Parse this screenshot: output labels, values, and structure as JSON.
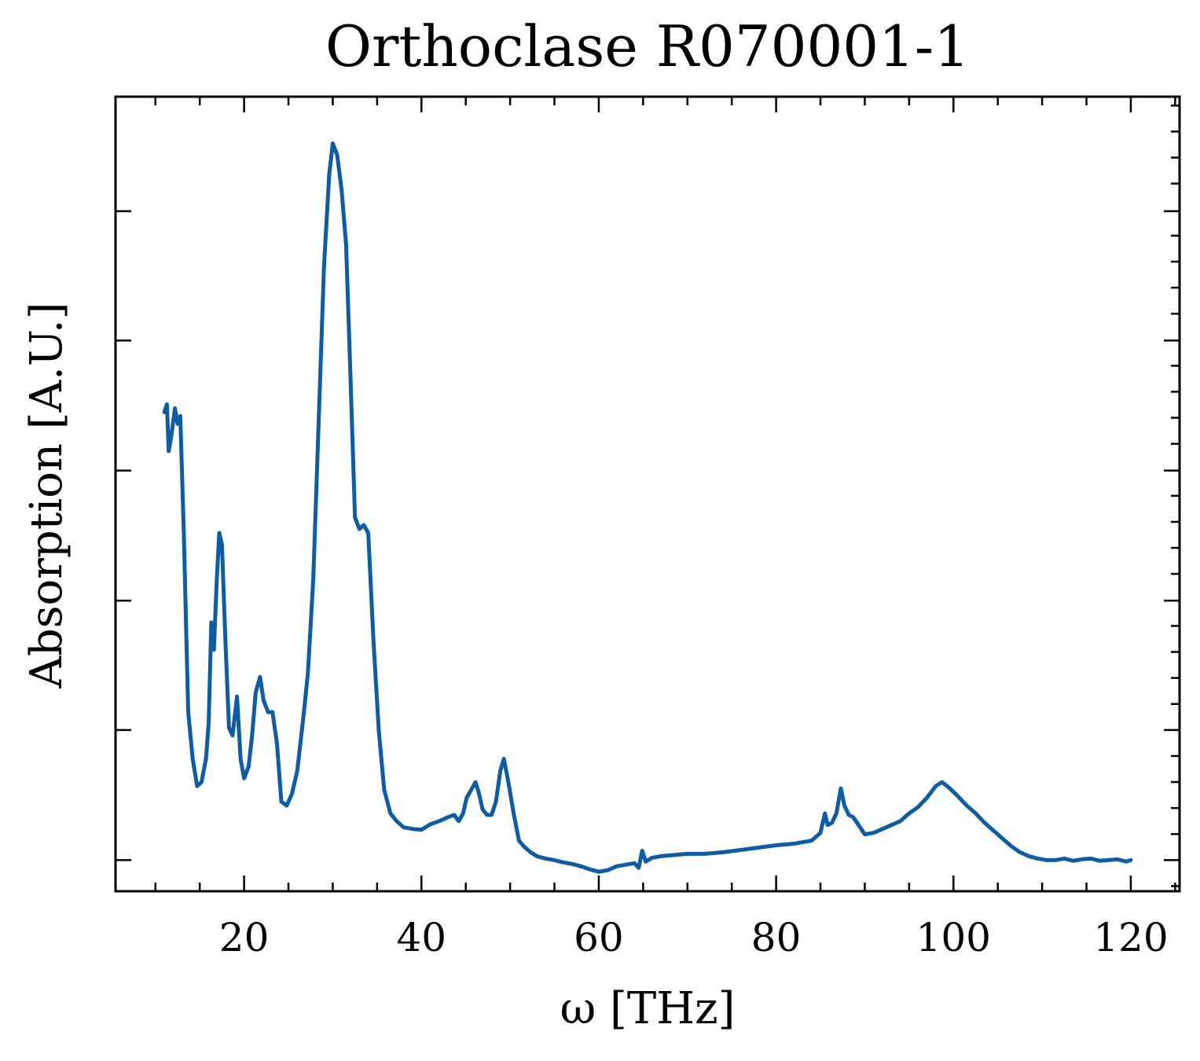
{
  "chart_data": {
    "type": "line",
    "title": "Orthoclase R070001-1",
    "xlabel": "ω [THz]",
    "ylabel": "Absorption [A.U.]",
    "xlim": [
      5.5,
      125.5
    ],
    "ylim": [
      -0.04,
      0.98
    ],
    "xticks": [
      20,
      40,
      60,
      80,
      100,
      120
    ],
    "yticks": [
      0.0,
      0.167,
      0.333,
      0.5,
      0.667,
      0.833
    ],
    "grid": false,
    "legend": "none",
    "series": [
      {
        "color": "#0c5da5",
        "x": [
          11.0,
          11.3,
          11.5,
          11.8,
          12.2,
          12.5,
          12.8,
          13.2,
          13.7,
          14.2,
          14.7,
          15.2,
          15.7,
          16.0,
          16.3,
          16.6,
          16.9,
          17.2,
          17.5,
          17.9,
          18.3,
          18.7,
          19.2,
          19.6,
          20.0,
          20.5,
          20.9,
          21.3,
          21.8,
          22.2,
          22.7,
          23.2,
          23.7,
          24.2,
          24.8,
          25.4,
          26.0,
          26.7,
          27.2,
          27.8,
          28.4,
          29.0,
          29.6,
          30.0,
          30.5,
          31.0,
          31.5,
          32.0,
          32.5,
          33.0,
          33.5,
          34.0,
          34.6,
          35.2,
          35.8,
          36.5,
          37.2,
          38.0,
          39.0,
          40.0,
          41.0,
          42.0,
          43.0,
          43.7,
          44.2,
          44.7,
          45.1,
          45.6,
          46.1,
          46.5,
          46.9,
          47.4,
          47.9,
          48.4,
          48.9,
          49.3,
          49.8,
          50.4,
          51.0,
          51.6,
          52.3,
          53.0,
          54.0,
          55.0,
          56.0,
          57.0,
          58.0,
          59.0,
          60.0,
          61.0,
          62.0,
          63.0,
          64.0,
          64.5,
          64.9,
          65.3,
          66.0,
          67.0,
          68.0,
          70.0,
          72.0,
          74.0,
          76.0,
          78.0,
          80.0,
          82.0,
          84.0,
          85.0,
          85.5,
          85.8,
          86.3,
          86.8,
          87.3,
          87.7,
          88.2,
          88.7,
          89.3,
          90.0,
          91.0,
          92.0,
          93.0,
          94.0,
          95.0,
          96.0,
          97.0,
          98.0,
          98.7,
          99.5,
          100.5,
          101.5,
          102.5,
          103.5,
          104.5,
          105.5,
          106.5,
          107.5,
          108.5,
          109.5,
          110.5,
          111.5,
          112.5,
          113.5,
          114.5,
          115.5,
          116.5,
          117.5,
          118.5,
          119.5,
          120.0
        ],
        "y": [
          0.575,
          0.585,
          0.525,
          0.545,
          0.58,
          0.56,
          0.57,
          0.42,
          0.19,
          0.13,
          0.095,
          0.1,
          0.13,
          0.175,
          0.305,
          0.27,
          0.355,
          0.42,
          0.405,
          0.28,
          0.17,
          0.16,
          0.21,
          0.13,
          0.105,
          0.12,
          0.16,
          0.215,
          0.235,
          0.205,
          0.19,
          0.19,
          0.15,
          0.075,
          0.07,
          0.085,
          0.115,
          0.185,
          0.24,
          0.36,
          0.56,
          0.76,
          0.88,
          0.92,
          0.905,
          0.86,
          0.79,
          0.62,
          0.44,
          0.425,
          0.43,
          0.42,
          0.28,
          0.165,
          0.09,
          0.06,
          0.05,
          0.042,
          0.04,
          0.039,
          0.046,
          0.05,
          0.055,
          0.058,
          0.05,
          0.06,
          0.08,
          0.09,
          0.1,
          0.085,
          0.065,
          0.058,
          0.058,
          0.075,
          0.115,
          0.13,
          0.1,
          0.06,
          0.025,
          0.017,
          0.01,
          0.005,
          0.002,
          0.0,
          -0.003,
          -0.005,
          -0.008,
          -0.012,
          -0.015,
          -0.013,
          -0.008,
          -0.006,
          -0.004,
          -0.01,
          0.012,
          -0.002,
          0.003,
          0.005,
          0.006,
          0.008,
          0.008,
          0.01,
          0.013,
          0.016,
          0.019,
          0.021,
          0.025,
          0.035,
          0.06,
          0.045,
          0.048,
          0.06,
          0.092,
          0.07,
          0.058,
          0.055,
          0.045,
          0.033,
          0.035,
          0.04,
          0.045,
          0.05,
          0.06,
          0.068,
          0.08,
          0.095,
          0.1,
          0.093,
          0.082,
          0.07,
          0.06,
          0.048,
          0.038,
          0.028,
          0.018,
          0.01,
          0.005,
          0.002,
          0.0,
          0.0,
          0.002,
          -0.001,
          0.001,
          0.002,
          -0.001,
          0.0,
          0.001,
          -0.002,
          0.0
        ]
      }
    ]
  }
}
